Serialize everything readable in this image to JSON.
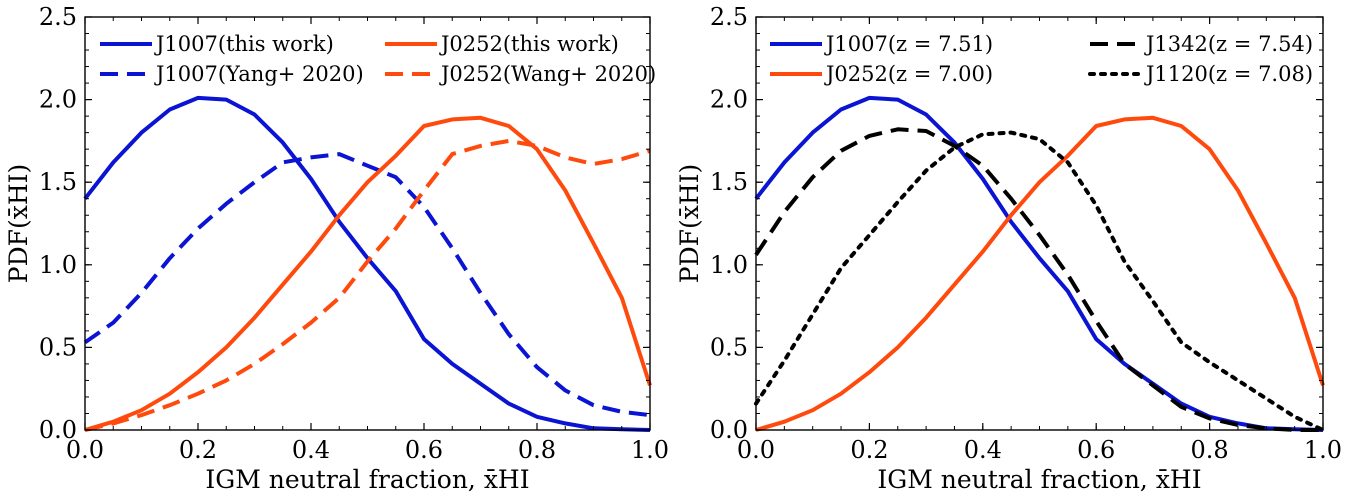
{
  "colors": {
    "blue": "#0a14d2",
    "orange": "#ff4a0d",
    "black": "#000000"
  },
  "chart_data": [
    {
      "type": "line",
      "xlabel": "IGM neutral fraction, x̄HI",
      "ylabel": "PDF(x̄HI)",
      "xlim": [
        0.0,
        1.0
      ],
      "ylim": [
        0.0,
        2.5
      ],
      "xticks": [
        "0.0",
        "0.2",
        "0.4",
        "0.6",
        "0.8",
        "1.0"
      ],
      "yticks": [
        "0.0",
        "0.5",
        "1.0",
        "1.5",
        "2.0",
        "2.5"
      ],
      "legend_position": "top",
      "series": [
        {
          "name": "J1007(this work)",
          "color": "blue",
          "dash": "solid",
          "x": [
            0.0,
            0.05,
            0.1,
            0.15,
            0.2,
            0.25,
            0.3,
            0.35,
            0.4,
            0.45,
            0.5,
            0.55,
            0.6,
            0.65,
            0.7,
            0.75,
            0.8,
            0.85,
            0.9,
            0.95,
            1.0
          ],
          "y": [
            1.4,
            1.62,
            1.8,
            1.94,
            2.01,
            2.0,
            1.91,
            1.74,
            1.52,
            1.26,
            1.04,
            0.84,
            0.55,
            0.4,
            0.28,
            0.16,
            0.08,
            0.04,
            0.01,
            0.005,
            0.0
          ]
        },
        {
          "name": "J1007(Yang+ 2020)",
          "color": "blue",
          "dash": "dashed",
          "x": [
            0.0,
            0.05,
            0.1,
            0.15,
            0.2,
            0.25,
            0.3,
            0.35,
            0.4,
            0.45,
            0.5,
            0.55,
            0.6,
            0.65,
            0.7,
            0.75,
            0.8,
            0.85,
            0.9,
            0.95,
            1.0
          ],
          "y": [
            0.53,
            0.65,
            0.83,
            1.04,
            1.22,
            1.37,
            1.5,
            1.62,
            1.65,
            1.67,
            1.6,
            1.53,
            1.35,
            1.1,
            0.83,
            0.58,
            0.38,
            0.24,
            0.15,
            0.11,
            0.09
          ]
        },
        {
          "name": "J0252(this work)",
          "color": "orange",
          "dash": "solid",
          "x": [
            0.0,
            0.05,
            0.1,
            0.15,
            0.2,
            0.25,
            0.3,
            0.35,
            0.4,
            0.45,
            0.5,
            0.55,
            0.6,
            0.65,
            0.7,
            0.75,
            0.8,
            0.85,
            0.9,
            0.95,
            1.0
          ],
          "y": [
            0.0,
            0.05,
            0.12,
            0.22,
            0.35,
            0.5,
            0.68,
            0.88,
            1.08,
            1.3,
            1.5,
            1.66,
            1.84,
            1.88,
            1.89,
            1.84,
            1.7,
            1.45,
            1.13,
            0.8,
            0.27
          ]
        },
        {
          "name": "J0252(Wang+ 2020)",
          "color": "orange",
          "dash": "dashed",
          "x": [
            0.0,
            0.05,
            0.1,
            0.15,
            0.2,
            0.25,
            0.3,
            0.35,
            0.4,
            0.45,
            0.5,
            0.55,
            0.6,
            0.65,
            0.7,
            0.75,
            0.8,
            0.85,
            0.9,
            0.95,
            1.0
          ],
          "y": [
            0.0,
            0.04,
            0.09,
            0.15,
            0.22,
            0.3,
            0.4,
            0.52,
            0.65,
            0.8,
            1.02,
            1.22,
            1.45,
            1.67,
            1.72,
            1.75,
            1.72,
            1.65,
            1.61,
            1.64,
            1.69
          ]
        }
      ]
    },
    {
      "type": "line",
      "xlabel": "IGM neutral fraction, x̄HI",
      "ylabel": "PDF(x̄HI)",
      "xlim": [
        0.0,
        1.0
      ],
      "ylim": [
        0.0,
        2.5
      ],
      "xticks": [
        "0.0",
        "0.2",
        "0.4",
        "0.6",
        "0.8",
        "1.0"
      ],
      "yticks": [
        "0.0",
        "0.5",
        "1.0",
        "1.5",
        "2.0",
        "2.5"
      ],
      "legend_position": "top",
      "series": [
        {
          "name": "J1007(z = 7.51)",
          "color": "blue",
          "dash": "solid",
          "x": [
            0.0,
            0.05,
            0.1,
            0.15,
            0.2,
            0.25,
            0.3,
            0.35,
            0.4,
            0.45,
            0.5,
            0.55,
            0.6,
            0.65,
            0.7,
            0.75,
            0.8,
            0.85,
            0.9,
            0.95,
            1.0
          ],
          "y": [
            1.4,
            1.62,
            1.8,
            1.94,
            2.01,
            2.0,
            1.91,
            1.74,
            1.52,
            1.26,
            1.04,
            0.84,
            0.55,
            0.4,
            0.28,
            0.16,
            0.08,
            0.04,
            0.01,
            0.005,
            0.0
          ]
        },
        {
          "name": "J0252(z = 7.00)",
          "color": "orange",
          "dash": "solid",
          "x": [
            0.0,
            0.05,
            0.1,
            0.15,
            0.2,
            0.25,
            0.3,
            0.35,
            0.4,
            0.45,
            0.5,
            0.55,
            0.6,
            0.65,
            0.7,
            0.75,
            0.8,
            0.85,
            0.9,
            0.95,
            1.0
          ],
          "y": [
            0.0,
            0.05,
            0.12,
            0.22,
            0.35,
            0.5,
            0.68,
            0.88,
            1.08,
            1.3,
            1.5,
            1.66,
            1.84,
            1.88,
            1.89,
            1.84,
            1.7,
            1.45,
            1.13,
            0.8,
            0.27
          ]
        },
        {
          "name": "J1342(z = 7.54)",
          "color": "black",
          "dash": "dashed",
          "x": [
            0.0,
            0.05,
            0.1,
            0.15,
            0.2,
            0.25,
            0.3,
            0.35,
            0.4,
            0.45,
            0.5,
            0.55,
            0.6,
            0.65,
            0.7,
            0.75,
            0.8,
            0.85,
            0.9,
            0.95,
            1.0
          ],
          "y": [
            1.06,
            1.32,
            1.53,
            1.69,
            1.78,
            1.82,
            1.81,
            1.72,
            1.6,
            1.4,
            1.18,
            0.94,
            0.66,
            0.4,
            0.27,
            0.14,
            0.07,
            0.03,
            0.01,
            0.0,
            0.0
          ]
        },
        {
          "name": "J1120(z = 7.08)",
          "color": "black",
          "dash": "dotted",
          "x": [
            0.0,
            0.05,
            0.1,
            0.15,
            0.2,
            0.25,
            0.3,
            0.35,
            0.4,
            0.45,
            0.5,
            0.55,
            0.6,
            0.65,
            0.7,
            0.75,
            0.8,
            0.85,
            0.9,
            0.95,
            1.0
          ],
          "y": [
            0.16,
            0.42,
            0.7,
            0.98,
            1.18,
            1.38,
            1.57,
            1.71,
            1.79,
            1.8,
            1.76,
            1.62,
            1.36,
            1.02,
            0.78,
            0.53,
            0.41,
            0.3,
            0.19,
            0.08,
            0.0
          ]
        }
      ]
    }
  ]
}
